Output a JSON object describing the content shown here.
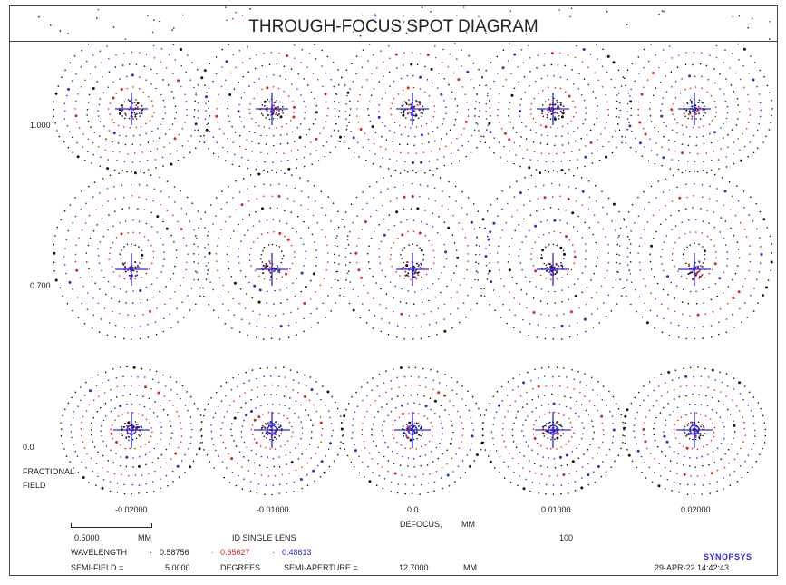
{
  "title": "THROUGH-FOCUS SPOT DIAGRAM",
  "field_labels": [
    "1.000",
    "0.700",
    "0.0"
  ],
  "fractional_field_label": [
    "FRACTIONAL",
    "FIELD"
  ],
  "defocus_values": [
    "-0.02000",
    "-0.01000",
    "0.0",
    "0.01000",
    "0.02000"
  ],
  "defocus_label": "DEFOCUS,",
  "defocus_unit": "MM",
  "scale_value": "0.5000",
  "scale_unit": "MM",
  "lens_name": "ID SINGLE LENS",
  "scale_factor": "100",
  "wavelength_label": "WAVELENGTH",
  "wavelengths": [
    "0.58756",
    "0.65627",
    "0.48613"
  ],
  "semi_field_label": "SEMI-FIELD =",
  "semi_field_value": "5.0000",
  "semi_field_unit": "DEGREES",
  "semi_aperture_label": "SEMI-APERTURE =",
  "semi_aperture_value": "12.7000",
  "semi_aperture_unit": "MM",
  "date": "29-APR-22",
  "time": "14:42:43",
  "logo": "SYNOPSYS",
  "colors": {
    "black": "#111111",
    "red": "#e02020",
    "blue": "#2a2ae0",
    "frame": "#444444"
  }
}
